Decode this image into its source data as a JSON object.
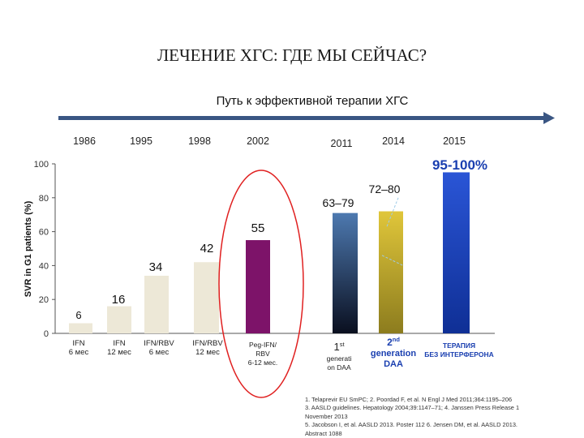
{
  "title": "ЛЕЧЕНИЕ ХГС: ГДЕ МЫ СЕЙЧАС?",
  "subtitle": "Путь к эффективной терапии ХГС",
  "colors": {
    "arrow": "#3a5683",
    "beige": "#ede8d7",
    "peg": "#7d1369",
    "peg_outline": "#e02020",
    "daa1_top": "#4d79b0",
    "daa1_bottom": "#0a0f1f",
    "daa2_top": "#e0c63a",
    "daa2_bottom": "#8c7c1e",
    "ifnfree": "#1740b8",
    "axis": "#555555"
  },
  "chart_data": {
    "type": "bar",
    "ylabel": "SVR in G1 patients (%)",
    "ylim": [
      0,
      100
    ],
    "yticks": [
      0,
      20,
      40,
      60,
      80,
      100
    ],
    "years": [
      "1986",
      "1995",
      "1998",
      "2002",
      "2011",
      "2014",
      "2015"
    ],
    "bars": [
      {
        "label_lines": [
          "IFN",
          "6 мес"
        ],
        "value": 6,
        "value_label": "6",
        "style": "beige"
      },
      {
        "label_lines": [
          "IFN",
          "12 мес"
        ],
        "value": 16,
        "value_label": "16",
        "style": "beige"
      },
      {
        "label_lines": [
          "IFN/RBV",
          "6 мес"
        ],
        "value": 34,
        "value_label": "34",
        "style": "beige"
      },
      {
        "label_lines": [
          "IFN/RBV",
          "12 мес"
        ],
        "value": 42,
        "value_label": "42",
        "style": "beige"
      },
      {
        "label_lines": [
          "Peg-IFN/",
          "RBV",
          "6-12 мес."
        ],
        "value": 55,
        "value_label": "55",
        "style": "peg"
      },
      {
        "label_lines": [
          "1st",
          "generati",
          "on DAA"
        ],
        "value": 71,
        "value_label": "63–79",
        "style": "daa1"
      },
      {
        "label_lines": [
          "2nd",
          "generation",
          "DAA"
        ],
        "value": 72,
        "value_label": "72–80",
        "style": "daa2"
      },
      {
        "label_lines": [
          "ТЕРАПИЯ",
          "БЕЗ ИНТЕРФЕРОНА"
        ],
        "value": 95,
        "value_label": "95-100%",
        "style": "ifnfree"
      }
    ]
  },
  "references": [
    "1. Telaprevir EU SmPC; 2. Poordad F, et al. N Engl J Med 2011;364:1195–206",
    "3. AASLD guidelines. Hepatology 2004;39:1147–71; 4. Janssen Press Release 1",
    "November 2013",
    "5. Jacobson I, et al. AASLD 2013. Poster 112 6. Jensen DM, et al. AASLD 2013.",
    "Abstract 1088"
  ]
}
